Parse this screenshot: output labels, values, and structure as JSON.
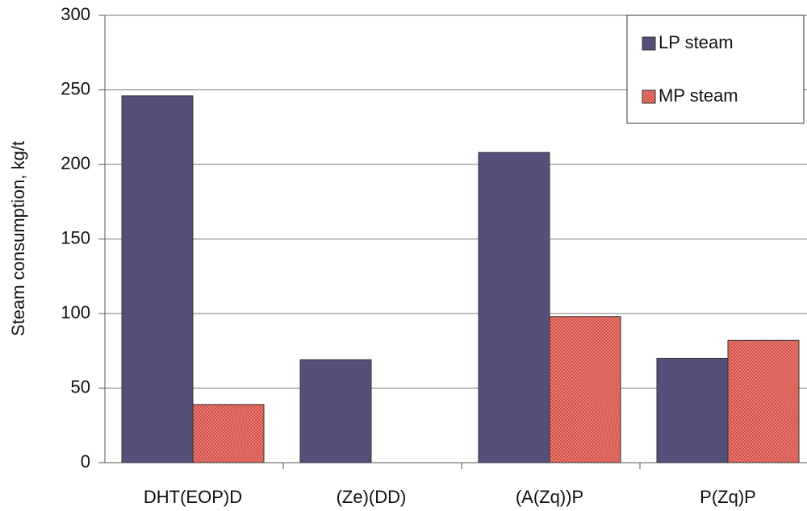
{
  "chart_data": {
    "type": "bar",
    "y_label": "Steam consumption, kg/t",
    "categories": [
      "DHT(EOP)D",
      "(Ze)(DD)",
      "(A(Zq))P",
      "P(Zq)P"
    ],
    "series": [
      {
        "name": "LP steam",
        "color": "#55507a",
        "values": [
          246,
          69,
          208,
          70
        ]
      },
      {
        "name": "MP steam",
        "color": "#e87a72",
        "values": [
          39,
          null,
          98,
          82
        ]
      }
    ],
    "ylim": [
      0,
      300
    ],
    "yticks": [
      0,
      50,
      100,
      150,
      200,
      250,
      300
    ],
    "grid": true,
    "legend": "upper right"
  }
}
